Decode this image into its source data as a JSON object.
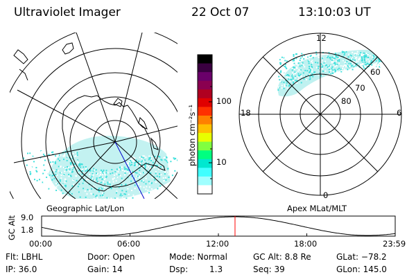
{
  "header": {
    "instrument": "Ultraviolet Imager",
    "date": "22 Oct 07",
    "time": "13:10:03 UT"
  },
  "colorbar": {
    "label": "photon cm⁻²s⁻¹",
    "ticks": [
      "100",
      "10"
    ],
    "colors": [
      "#000000",
      "#3a0040",
      "#6a006a",
      "#8a0050",
      "#b00020",
      "#e00000",
      "#ff3000",
      "#ff8000",
      "#ffc000",
      "#e8ff00",
      "#80ff40",
      "#00ff80",
      "#00e8d0",
      "#40ffff",
      "#a0ffff",
      "#ffffff"
    ]
  },
  "left_panel": {
    "caption": "Geographic Lat/Lon"
  },
  "right_panel": {
    "caption": "Apex MLat/MLT",
    "mlt_labels": {
      "top": "12",
      "left": "18",
      "right": "6",
      "bottom": "0"
    },
    "lat_labels": [
      "60",
      "70",
      "80"
    ]
  },
  "timeline": {
    "ylabel": "GC Alt",
    "yticks": [
      "9.0",
      "1.8"
    ],
    "xticks": [
      "00:00",
      "06:00",
      "12:00",
      "18:00",
      "23:59"
    ],
    "marker_fraction": 0.547,
    "marker_color": "#ff0000"
  },
  "info": {
    "flt": "Flt: LBHL",
    "door": "Door: Open",
    "mode": "Mode: Normal",
    "gc_alt": "GC Alt: 8.8 Re",
    "glat": "GLat: −78.2",
    "ip": "IP: 36.0",
    "gain": "Gain: 14",
    "dsp_label": "Dsp:",
    "dsp_value": "1.3",
    "seq": "Seq: 39",
    "glon": "GLon: 145.0"
  },
  "theme": {
    "aurora_fill": "#b8f0ee",
    "aurora_dots": "#3ce0dc",
    "track_color": "#0000cc"
  }
}
